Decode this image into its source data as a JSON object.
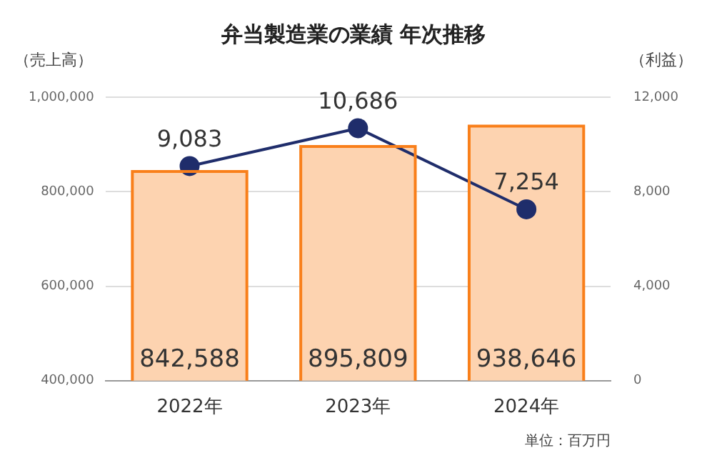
{
  "chart_data": {
    "type": "bar",
    "title": "弁当製造業の業績 年次推移",
    "categories": [
      "2022年",
      "2023年",
      "2024年"
    ],
    "series": [
      {
        "color": "#fdd3b0",
        "values": [
          842588,
          895809,
          938646
        ],
        "value_labels": [
          "842,588",
          "895,809",
          "938,646"
        ]
      },
      {
        "type": "line",
        "axis": "y2",
        "color": "#1f2d6b",
        "values": [
          9083,
          10686,
          7254
        ],
        "value_labels": [
          "9,083",
          "10,686",
          "7,254"
        ]
      }
    ],
    "ylabel": "（売上高）",
    "y2label": "（利益）",
    "ylim": [
      400000,
      1000000
    ],
    "yticks": [
      {
        "value": 400000,
        "label": "400,000"
      },
      {
        "value": 600000,
        "label": "600,000"
      },
      {
        "value": 800000,
        "label": "800,000"
      },
      {
        "value": 1000000,
        "label": "1,000,000"
      }
    ],
    "y2lim": [
      0,
      12000
    ],
    "y2ticks": [
      0,
      {
        "value": 4000,
        "label": "4,000"
      },
      {
        "value": 8000,
        "label": "8,000"
      },
      {
        "value": 12000,
        "label": "12,000"
      }
    ],
    "grid": "y",
    "legend": false,
    "marker": "circle",
    "line_style": "solid",
    "annotations": [
      "単位：百万円"
    ]
  }
}
